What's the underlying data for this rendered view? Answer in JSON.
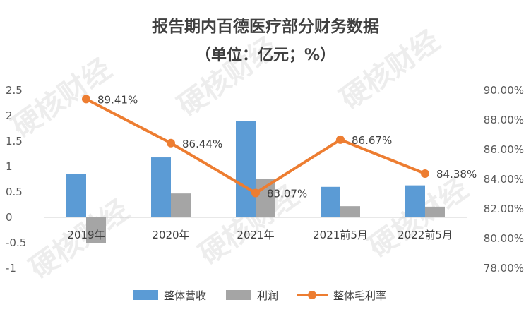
{
  "chart_data": {
    "type": "bar",
    "title": "报告期内百德医疗部分财务数据",
    "subtitle": "（单位：亿元；%）",
    "categories": [
      "2019年",
      "2020年",
      "2021年",
      "2021前5月",
      "2022前5月"
    ],
    "series": [
      {
        "name": "整体营收",
        "type": "bar",
        "axis": "left",
        "color": "#5b9bd5",
        "values": [
          0.85,
          1.18,
          1.89,
          0.6,
          0.63
        ]
      },
      {
        "name": "利润",
        "type": "bar",
        "axis": "left",
        "color": "#a5a5a5",
        "values": [
          -0.5,
          0.47,
          0.75,
          0.22,
          0.21
        ]
      },
      {
        "name": "整体毛利率",
        "type": "line",
        "axis": "right",
        "color": "#ed7d31",
        "values": [
          89.41,
          86.44,
          83.07,
          86.67,
          84.38
        ],
        "labels": [
          "89.41%",
          "86.44%",
          "83.07%",
          "86.67%",
          "84.38%"
        ]
      }
    ],
    "left_axis": {
      "min": -1,
      "max": 2.5,
      "ticks": [
        "2.5",
        "2",
        "1.5",
        "1",
        "0.5",
        "0",
        "-0.5",
        "-1"
      ]
    },
    "right_axis": {
      "min": 78,
      "max": 90,
      "ticks": [
        "90.00%",
        "88.00%",
        "86.00%",
        "84.00%",
        "82.00%",
        "80.00%",
        "78.00%"
      ]
    },
    "legend_position": "bottom",
    "grid": false
  },
  "watermark": "硬核财经"
}
